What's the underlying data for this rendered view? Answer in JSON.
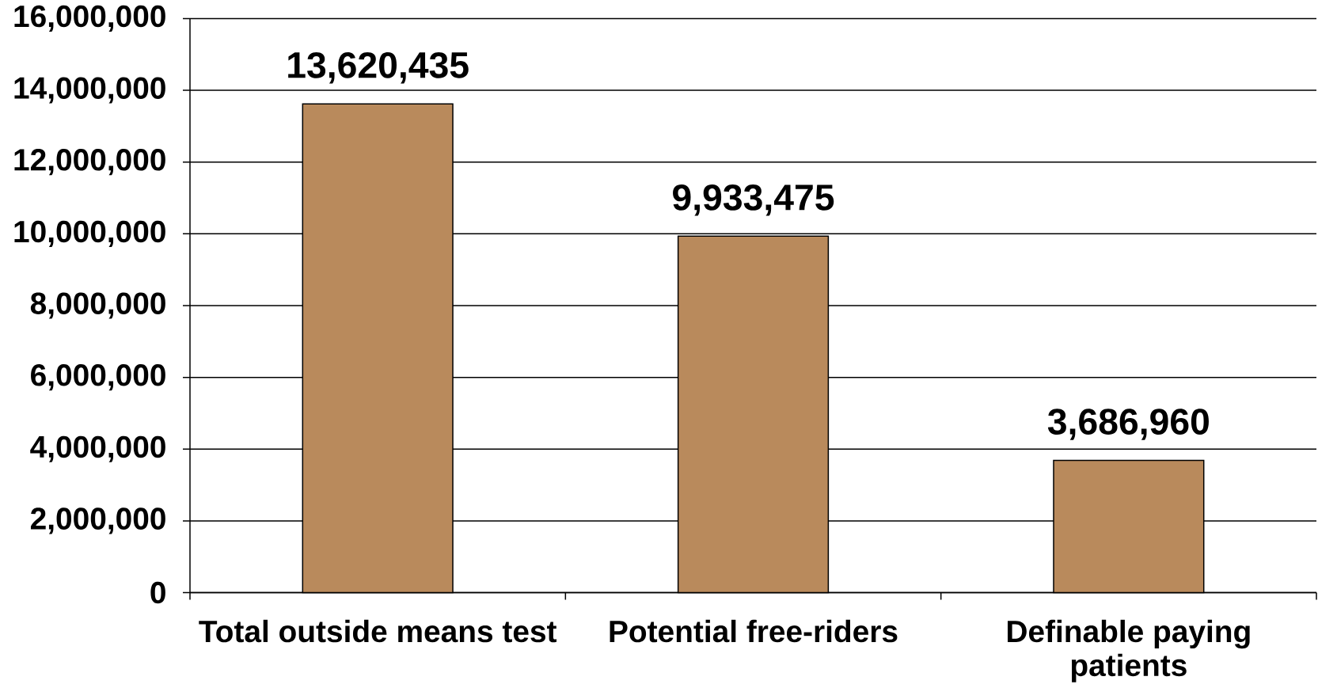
{
  "chart_data": {
    "type": "bar",
    "categories": [
      "Total outside means test",
      "Potential free-riders",
      "Definable paying patients"
    ],
    "values": [
      13620435,
      9933475,
      3686960
    ],
    "value_labels": [
      "13,620,435",
      "9,933,475",
      "3,686,960"
    ],
    "color": "#b98a5c",
    "ylim": [
      0,
      16000000
    ],
    "yticks": [
      0,
      {
        "value": 2000000,
        "label": "2,000,000"
      },
      {
        "value": 4000000,
        "label": "4,000,000"
      },
      {
        "value": 6000000,
        "label": "6,000,000"
      },
      {
        "value": 8000000,
        "label": "8,000,000"
      },
      {
        "value": 10000000,
        "label": "10,000,000"
      },
      {
        "value": 12000000,
        "label": "12,000,000"
      },
      {
        "value": 14000000,
        "label": "14,000,000"
      },
      {
        "value": 16000000,
        "label": "16,000,000"
      }
    ],
    "grid": "y"
  }
}
